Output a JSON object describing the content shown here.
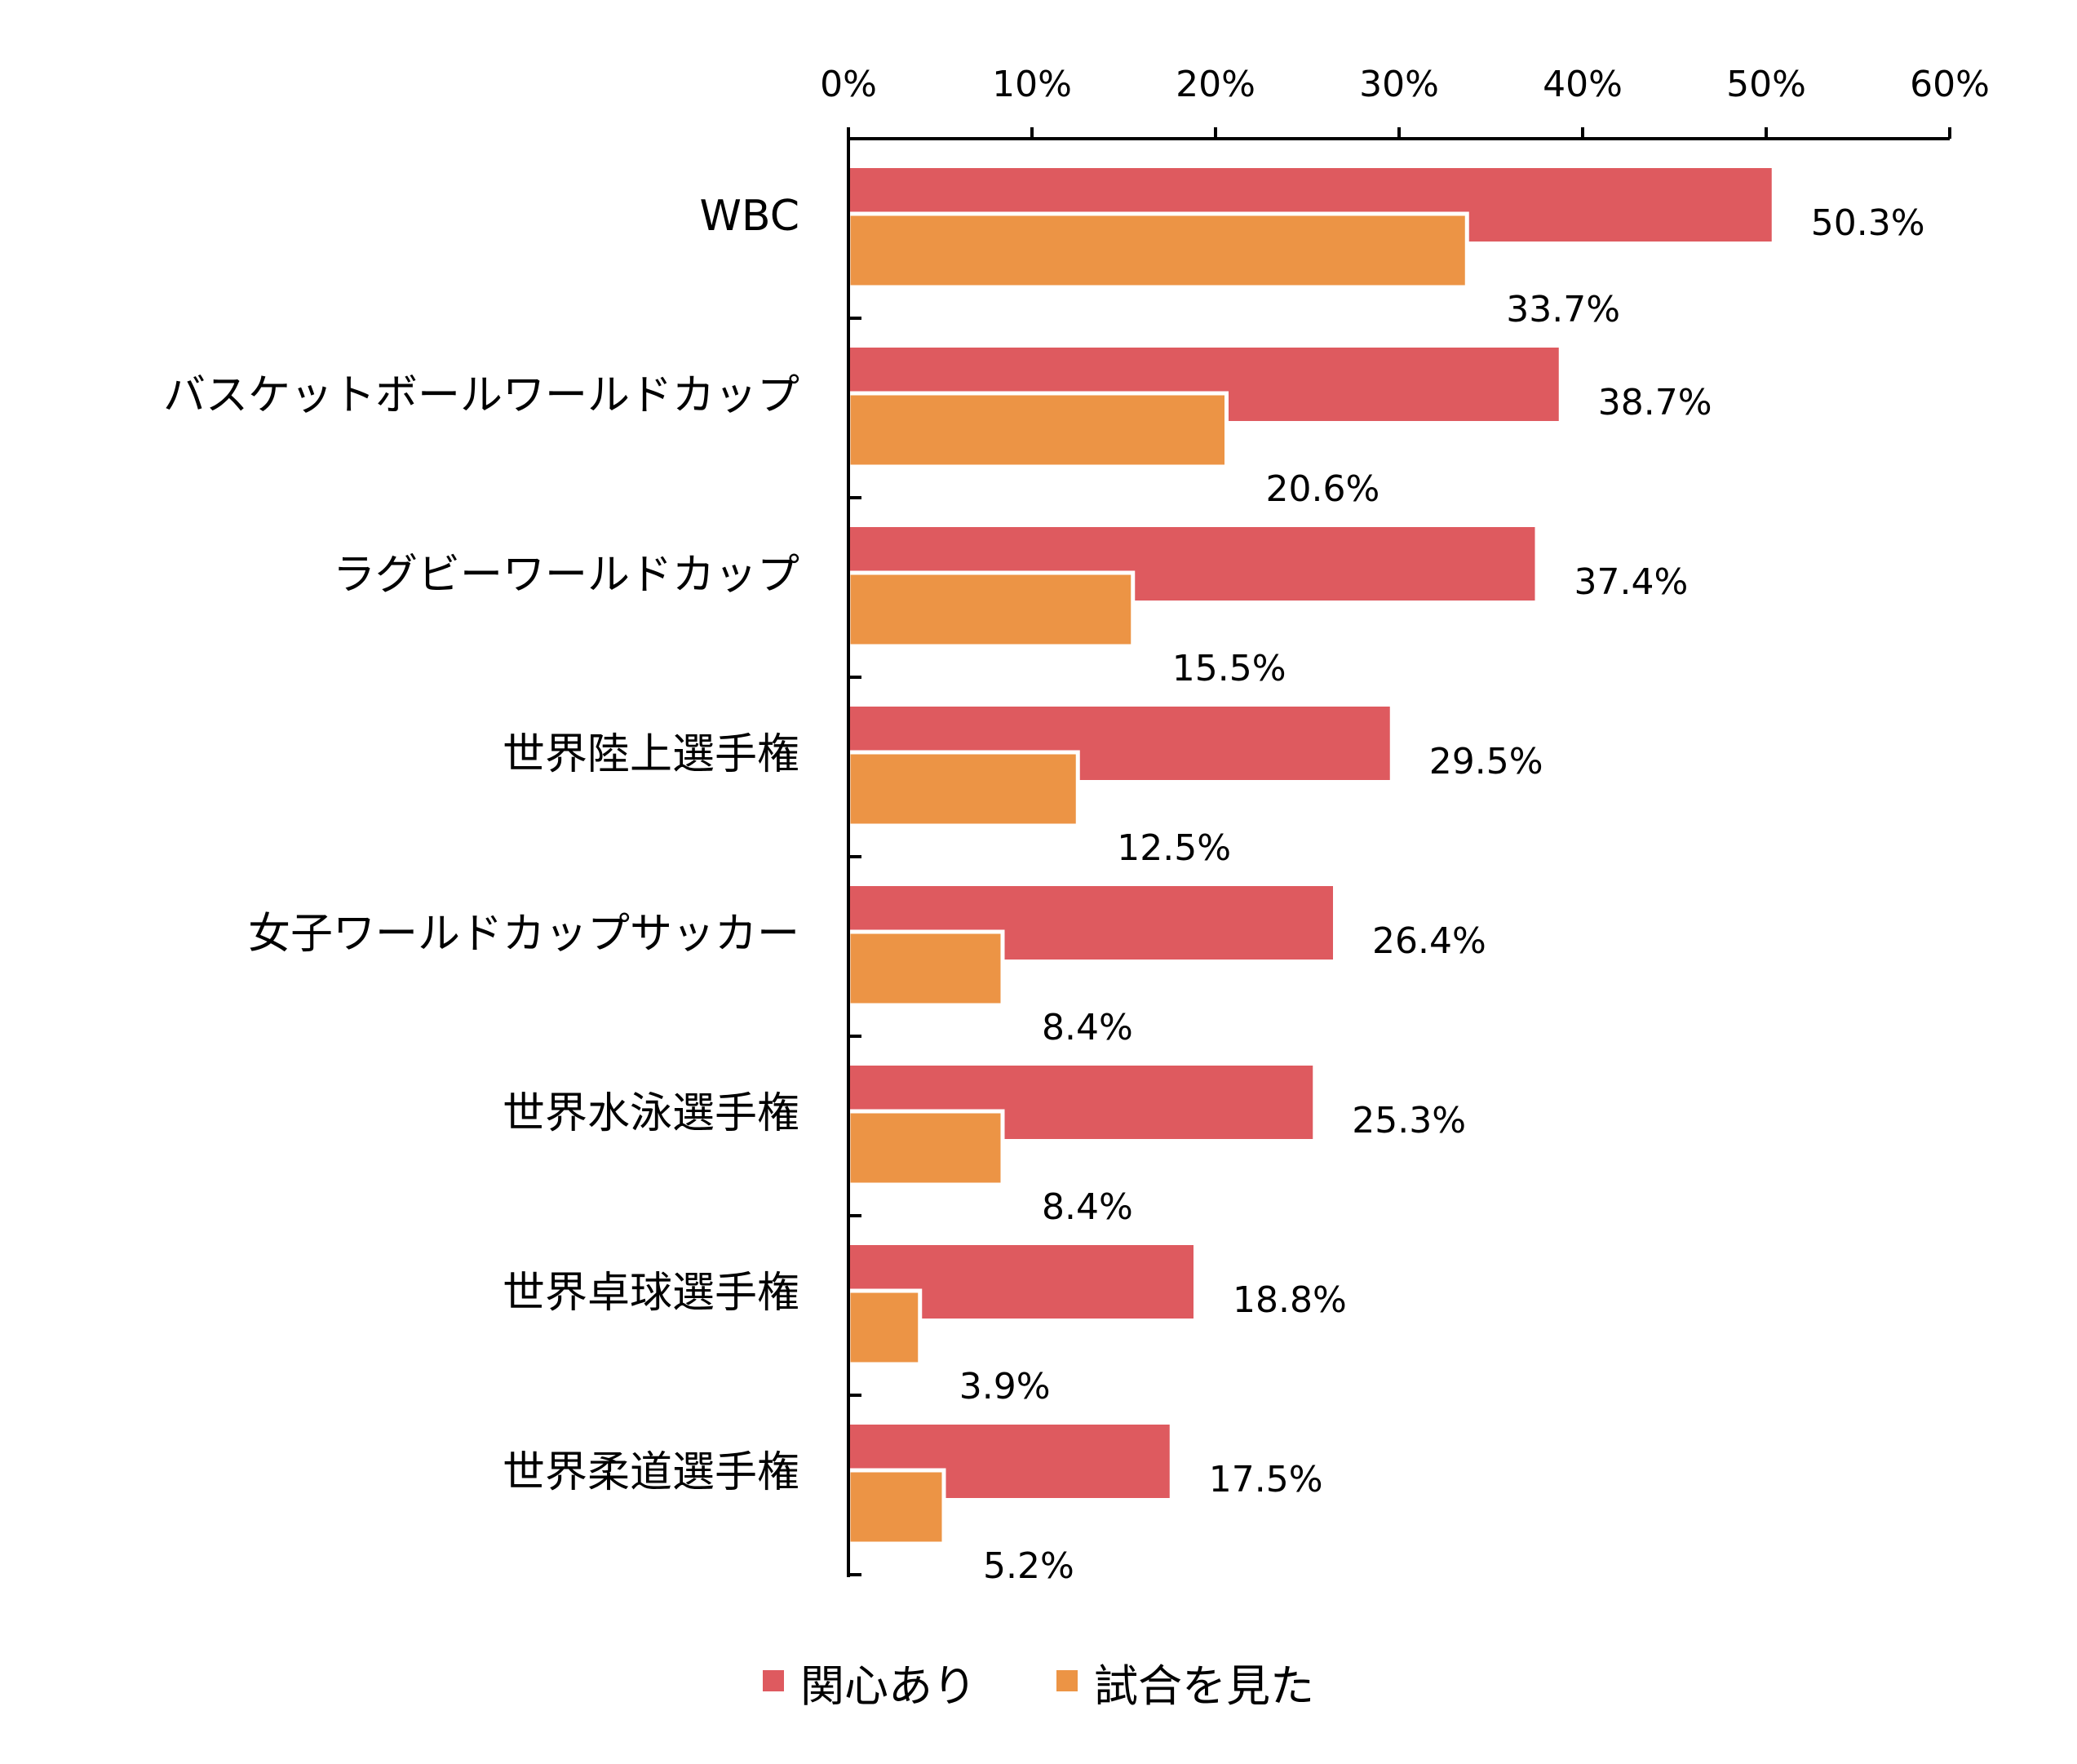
{
  "chart_data": {
    "type": "bar",
    "orientation": "horizontal",
    "categories": [
      "WBC",
      "バスケットボールワールドカップ",
      "ラグビーワールドカップ",
      "世界陸上選手権",
      "女子ワールドカップサッカー",
      "世界水泳選手権",
      "世界卓球選手権",
      "世界柔道選手権"
    ],
    "series": [
      {
        "name": "関心あり",
        "color": "#de5a5f",
        "values": [
          50.3,
          38.7,
          37.4,
          29.5,
          26.4,
          25.3,
          18.8,
          17.5
        ],
        "labels": [
          "50.3%",
          "38.7%",
          "37.4%",
          "29.5%",
          "26.4%",
          "25.3%",
          "18.8%",
          "17.5%"
        ]
      },
      {
        "name": "試合を見た",
        "color": "#ec9445",
        "values": [
          33.7,
          20.6,
          15.5,
          12.5,
          8.4,
          8.4,
          3.9,
          5.2
        ],
        "labels": [
          "33.7%",
          "20.6%",
          "15.5%",
          "12.5%",
          "8.4%",
          "8.4%",
          "3.9%",
          "5.2%"
        ]
      }
    ],
    "xlim": [
      0,
      60
    ],
    "xticks": [
      0,
      10,
      20,
      30,
      40,
      50,
      60
    ],
    "xtick_labels": [
      "0%",
      "10%",
      "20%",
      "30%",
      "40%",
      "50%",
      "60%"
    ],
    "x_axis_position": "top",
    "grid": false,
    "legend_position": "bottom-center"
  }
}
